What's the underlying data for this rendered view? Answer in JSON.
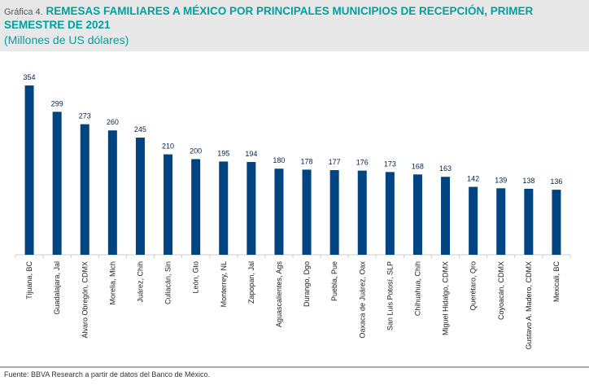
{
  "header": {
    "label": "Gráfica 4.",
    "title": "REMESAS FAMILIARES A MÉXICO POR PRINCIPALES MUNICIPIOS DE RECEPCIÓN, PRIMER SEMESTRE DE 2021",
    "subtitle": "(Millones de US dólares)"
  },
  "source": "Fuente: BBVA Research a partir de datos del Banco de México.",
  "chart_data": {
    "type": "bar",
    "title": "REMESAS FAMILIARES A MÉXICO POR PRINCIPALES MUNICIPIOS DE RECEPCIÓN, PRIMER SEMESTRE DE 2021",
    "ylabel": "(Millones de US dólares)",
    "categories": [
      "Tijuana, BC",
      "Guadalajara, Jal",
      "Álvaro Obregón, CDMX",
      "Morelia, Mich",
      "Juárez, Chih",
      "Culiacán, Sin",
      "León, Gto",
      "Monterrey, NL",
      "Zapopan, Jal",
      "Aguascalientes, Ags",
      "Durango, Dgo",
      "Puebla, Pue",
      "Oaxaca de Juárez, Oax",
      "San Luis Potosí, SLP",
      "Chihuahua, Chih",
      "Miguel Hidalgo, CDMX",
      "Querétaro, Qro",
      "Coyoacán, CDMX",
      "Gustavo A. Madero, CDMX",
      "Mexicali, BC"
    ],
    "values": [
      354,
      299,
      273,
      260,
      245,
      210,
      200,
      195,
      194,
      180,
      178,
      177,
      176,
      173,
      168,
      163,
      142,
      139,
      138,
      136
    ],
    "ylim": [
      0,
      354
    ],
    "grid": false,
    "bar_color": "#004481",
    "label_color": "#072146"
  }
}
